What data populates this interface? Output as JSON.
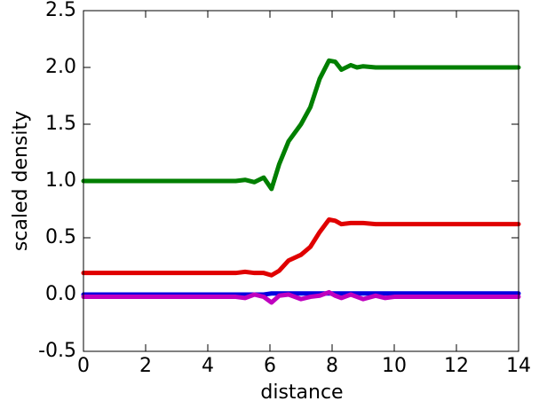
{
  "chart_data": {
    "type": "line",
    "xlabel": "distance",
    "ylabel": "scaled density",
    "x": [
      0,
      4.9,
      5.2,
      5.5,
      5.8,
      6.05,
      6.3,
      6.6,
      7.0,
      7.3,
      7.6,
      7.9,
      8.1,
      8.3,
      8.6,
      8.8,
      9.0,
      9.4,
      9.7,
      10,
      14
    ],
    "series": [
      {
        "color": "#007f00",
        "values": [
          1,
          1,
          1.01,
          0.99,
          1.03,
          0.93,
          1.15,
          1.35,
          1.5,
          1.65,
          1.9,
          2.06,
          2.05,
          1.98,
          2.02,
          2.0,
          2.01,
          2.0,
          2.0,
          2.0,
          2.0
        ]
      },
      {
        "color": "#e00000",
        "values": [
          0.19,
          0.19,
          0.2,
          0.19,
          0.19,
          0.17,
          0.21,
          0.3,
          0.35,
          0.42,
          0.55,
          0.66,
          0.65,
          0.62,
          0.63,
          0.63,
          0.63,
          0.62,
          0.62,
          0.62,
          0.62
        ]
      },
      {
        "color": "#0000e0",
        "values": [
          0,
          0,
          0,
          0,
          0,
          0.01,
          0.01,
          0.01,
          0.01,
          0.01,
          0.01,
          0.01,
          0.01,
          0.01,
          0.01,
          0.01,
          0.01,
          0.01,
          0.01,
          0.01,
          0.01
        ]
      },
      {
        "color": "#bf00bf",
        "values": [
          -0.02,
          -0.02,
          -0.03,
          0.0,
          -0.02,
          -0.07,
          -0.01,
          0.0,
          -0.04,
          -0.02,
          -0.01,
          0.02,
          -0.01,
          -0.03,
          0.0,
          -0.02,
          -0.04,
          -0.01,
          -0.03,
          -0.02,
          -0.02
        ]
      }
    ],
    "xlim": [
      0,
      14
    ],
    "xticks": [
      0,
      2,
      4,
      6,
      8,
      10,
      12,
      14
    ],
    "ylim": [
      -0.5,
      2.5
    ],
    "yticks": [
      -0.5,
      {
        "value": 0,
        "label": "0.0"
      },
      0.5,
      {
        "value": 1,
        "label": "1.0"
      },
      1.5,
      {
        "value": 2,
        "label": "2.0"
      },
      2.5
    ],
    "grid": false
  }
}
